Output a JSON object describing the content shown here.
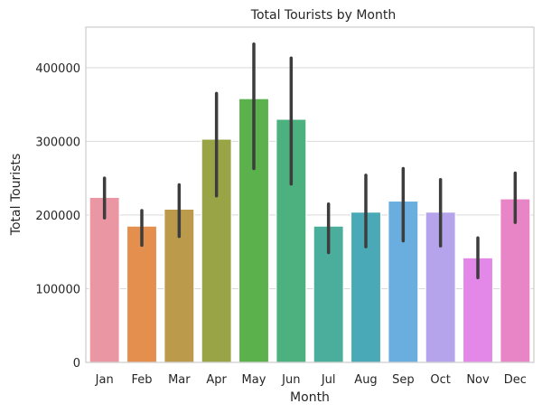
{
  "chart_data": {
    "type": "bar",
    "title": "Total Tourists by Month",
    "xlabel": "Month",
    "ylabel": "Total Tourists",
    "categories": [
      "Jan",
      "Feb",
      "Mar",
      "Apr",
      "May",
      "Jun",
      "Jul",
      "Aug",
      "Sep",
      "Oct",
      "Nov",
      "Dec"
    ],
    "values": [
      224000,
      185000,
      208000,
      303000,
      358000,
      330000,
      185000,
      204000,
      219000,
      204000,
      142000,
      222000
    ],
    "error_low": [
      196000,
      159000,
      171000,
      226000,
      263000,
      242000,
      149000,
      157000,
      165000,
      158000,
      115000,
      190000
    ],
    "error_high": [
      250000,
      206000,
      241000,
      365000,
      432000,
      413000,
      215000,
      254000,
      263000,
      248000,
      169000,
      257000
    ],
    "colors": [
      "#ea96a3",
      "#e58f4f",
      "#bb9b4b",
      "#99a446",
      "#5bb14c",
      "#4cb07f",
      "#4bae9c",
      "#4aa9b6",
      "#6aaee0",
      "#b5a4eb",
      "#e387e8",
      "#e885c6"
    ],
    "ylim": [
      0,
      455000
    ],
    "yticks": [
      0,
      100000,
      200000,
      300000,
      400000
    ],
    "grid": true
  }
}
